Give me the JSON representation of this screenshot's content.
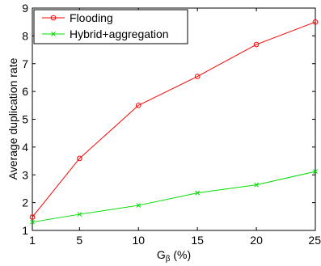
{
  "chart_data": {
    "type": "line",
    "x": [
      1,
      5,
      10,
      15,
      20,
      25
    ],
    "xticks": [
      "1",
      "5",
      "10",
      "15",
      "20",
      "25"
    ],
    "yticks": [
      "1",
      "2",
      "3",
      "4",
      "5",
      "6",
      "7",
      "8",
      "9"
    ],
    "xlim": [
      1,
      25
    ],
    "ylim": [
      1,
      9
    ],
    "xlabel": "G",
    "xlabel_sub": "β",
    "xlabel_suffix": " (%)",
    "ylabel": "Average duplication rate",
    "grid": false,
    "legend_position": "top-left",
    "series": [
      {
        "name": "Flooding",
        "color": "#ff0000",
        "marker": "circle",
        "values": [
          1.48,
          3.59,
          5.5,
          6.54,
          7.69,
          8.5
        ]
      },
      {
        "name": "Hybrid+aggregation",
        "color": "#00dd00",
        "marker": "x",
        "values": [
          1.3,
          1.58,
          1.9,
          2.35,
          2.64,
          3.12
        ]
      }
    ]
  }
}
